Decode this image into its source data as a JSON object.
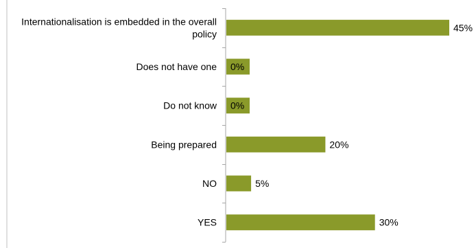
{
  "chart_data": {
    "type": "bar",
    "orientation": "horizontal",
    "categories": [
      "Internationalisation is embedded in the overall policy",
      "Does not have one",
      "Do not know",
      "Being prepared",
      "NO",
      "YES"
    ],
    "category_lines": [
      [
        "Internationalisation is embedded in the overall",
        "policy"
      ],
      [
        "Does not have one"
      ],
      [
        "Do not know"
      ],
      [
        "Being prepared"
      ],
      [
        "NO"
      ],
      [
        "YES"
      ]
    ],
    "values": [
      45,
      0,
      0,
      20,
      5,
      30
    ],
    "value_labels": [
      "45%",
      "0%",
      "0%",
      "20%",
      "5%",
      "30%"
    ],
    "unit": "%",
    "bar_color": "#8a9a2a",
    "axis_color": "#a6a6a6",
    "xlim": [
      0,
      45
    ],
    "title": "",
    "xlabel": "",
    "ylabel": "",
    "grid": false,
    "legend": false
  }
}
